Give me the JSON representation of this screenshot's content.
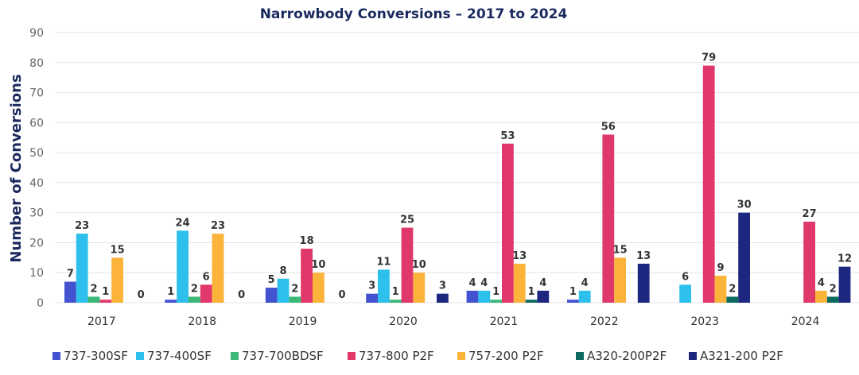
{
  "chart_data": {
    "type": "bar",
    "title": "Narrowbody Conversions – 2017 to 2024",
    "ylabel": "Number of Conversions",
    "xlabel": "",
    "ylim": [
      0,
      90
    ],
    "yticks": [
      0,
      10,
      20,
      30,
      40,
      50,
      60,
      70,
      80,
      90
    ],
    "grid": true,
    "legend_position": "bottom",
    "categories": [
      "2017",
      "2018",
      "2019",
      "2020",
      "2021",
      "2022",
      "2023",
      "2024"
    ],
    "series": [
      {
        "name": "737-300SF",
        "color": "#4252d0",
        "values": [
          7,
          1,
          5,
          3,
          4,
          1,
          null,
          null
        ]
      },
      {
        "name": "737-400SF",
        "color": "#2ec0ec",
        "values": [
          23,
          24,
          8,
          11,
          4,
          4,
          6,
          null
        ]
      },
      {
        "name": "737-700BDSF",
        "color": "#3cb878",
        "values": [
          2,
          2,
          2,
          1,
          1,
          null,
          null,
          null
        ]
      },
      {
        "name": "737-800 P2F",
        "color": "#e0386a",
        "values": [
          1,
          6,
          18,
          25,
          53,
          56,
          79,
          27
        ]
      },
      {
        "name": "757-200 P2F",
        "color": "#fbb33a",
        "values": [
          15,
          23,
          10,
          10,
          13,
          15,
          9,
          4
        ]
      },
      {
        "name": "A320-200P2F",
        "color": "#0c6b5e",
        "values": [
          null,
          null,
          null,
          null,
          1,
          null,
          2,
          2
        ]
      },
      {
        "name": "A321-200 P2F",
        "color": "#1e2780",
        "values": [
          0,
          0,
          0,
          3,
          4,
          13,
          30,
          12
        ]
      }
    ]
  }
}
